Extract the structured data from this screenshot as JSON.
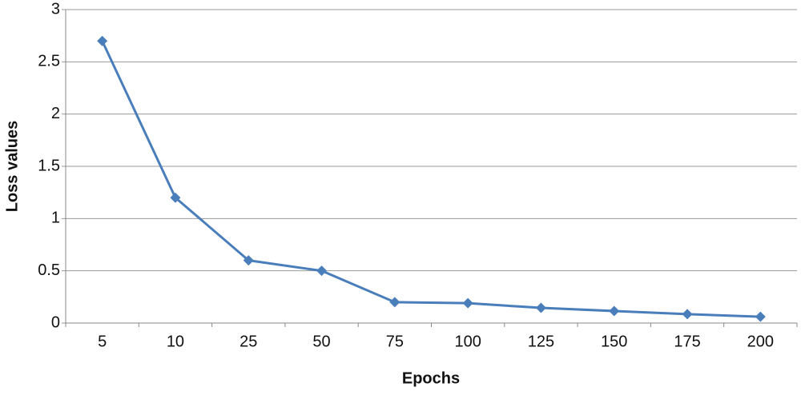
{
  "chart_data": {
    "type": "line",
    "x_label": "Epochs",
    "y_label": "Loss values",
    "categories": [
      "5",
      "10",
      "25",
      "50",
      "75",
      "100",
      "125",
      "150",
      "175",
      "200"
    ],
    "values": [
      2.7,
      1.2,
      0.6,
      0.5,
      0.2,
      0.19,
      0.145,
      0.115,
      0.085,
      0.06
    ],
    "color": "#4a7ebb",
    "ylim": [
      0,
      3
    ],
    "yticks": [
      0,
      0.5,
      1,
      1.5,
      2,
      2.5,
      3
    ],
    "grid": true
  }
}
